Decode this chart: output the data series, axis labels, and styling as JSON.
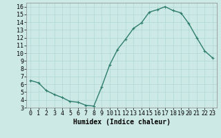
{
  "x": [
    0,
    1,
    2,
    3,
    4,
    5,
    6,
    7,
    8,
    9,
    10,
    11,
    12,
    13,
    14,
    15,
    16,
    17,
    18,
    19,
    20,
    21,
    22,
    23
  ],
  "y": [
    6.5,
    6.2,
    5.2,
    4.7,
    4.3,
    3.8,
    3.7,
    3.3,
    3.2,
    5.7,
    8.5,
    10.5,
    11.8,
    13.2,
    13.9,
    15.3,
    15.6,
    16.0,
    15.5,
    15.2,
    13.8,
    12.0,
    10.3,
    9.4
  ],
  "xlabel": "Humidex (Indice chaleur)",
  "ylim": [
    3,
    16.5
  ],
  "xlim": [
    -0.5,
    23.5
  ],
  "yticks": [
    3,
    4,
    5,
    6,
    7,
    8,
    9,
    10,
    11,
    12,
    13,
    14,
    15,
    16
  ],
  "xticks": [
    0,
    1,
    2,
    3,
    4,
    5,
    6,
    7,
    8,
    9,
    10,
    11,
    12,
    13,
    14,
    15,
    16,
    17,
    18,
    19,
    20,
    21,
    22,
    23
  ],
  "line_color": "#2e7d6e",
  "marker": "+",
  "bg_color": "#cce9e5",
  "grid_color": "#b0d8d3",
  "axis_label_fontsize": 7,
  "tick_fontsize": 6
}
